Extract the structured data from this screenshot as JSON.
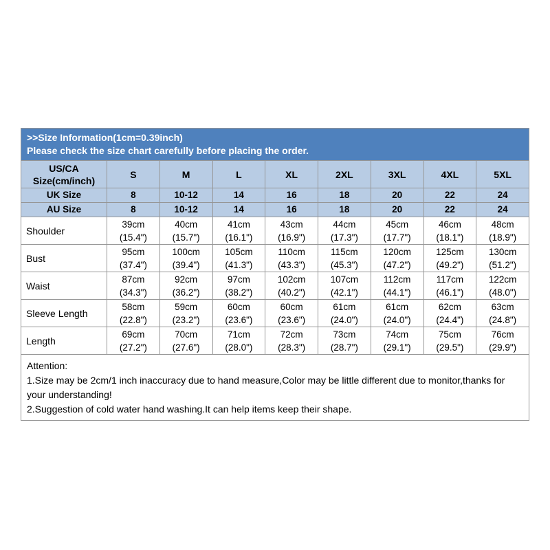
{
  "banner": {
    "line1": ">>Size Information(1cm=0.39inch)",
    "line2": "Please check the size chart carefully before placing the order."
  },
  "table": {
    "header_label_line1": "US/CA",
    "header_label_line2": "Size(cm/inch)",
    "sizes": [
      "S",
      "M",
      "L",
      "XL",
      "2XL",
      "3XL",
      "4XL",
      "5XL"
    ],
    "uk_label": "UK Size",
    "uk_values": [
      "8",
      "10-12",
      "14",
      "16",
      "18",
      "20",
      "22",
      "24"
    ],
    "au_label": "AU Size",
    "au_values": [
      "8",
      "10-12",
      "14",
      "16",
      "18",
      "20",
      "22",
      "24"
    ],
    "measurements": [
      {
        "label": "Shoulder",
        "cm": [
          "39cm",
          "40cm",
          "41cm",
          "43cm",
          "44cm",
          "45cm",
          "46cm",
          "48cm"
        ],
        "inch": [
          "(15.4\")",
          "(15.7\")",
          "(16.1\")",
          "(16.9\")",
          "(17.3\")",
          "(17.7\")",
          "(18.1\")",
          "(18.9\")"
        ]
      },
      {
        "label": "Bust",
        "cm": [
          "95cm",
          "100cm",
          "105cm",
          "110cm",
          "115cm",
          "120cm",
          "125cm",
          "130cm"
        ],
        "inch": [
          "(37.4\")",
          "(39.4\")",
          "(41.3\")",
          "(43.3\")",
          "(45.3\")",
          "(47.2\")",
          "(49.2\")",
          "(51.2\")"
        ]
      },
      {
        "label": "Waist",
        "cm": [
          "87cm",
          "92cm",
          "97cm",
          "102cm",
          "107cm",
          "112cm",
          "117cm",
          "122cm"
        ],
        "inch": [
          "(34.3\")",
          "(36.2\")",
          "(38.2\")",
          "(40.2\")",
          "(42.1\")",
          "(44.1\")",
          "(46.1\")",
          "(48.0\")"
        ]
      },
      {
        "label": "Sleeve Length",
        "cm": [
          "58cm",
          "59cm",
          "60cm",
          "60cm",
          "61cm",
          "61cm",
          "62cm",
          "63cm"
        ],
        "inch": [
          "(22.8\")",
          "(23.2\")",
          "(23.6\")",
          "(23.6\")",
          "(24.0\")",
          "(24.0\")",
          "(24.4\")",
          "(24.8\")"
        ]
      },
      {
        "label": "Length",
        "cm": [
          "69cm",
          "70cm",
          "71cm",
          "72cm",
          "73cm",
          "74cm",
          "75cm",
          "76cm"
        ],
        "inch": [
          "(27.2\")",
          "(27.6\")",
          "(28.0\")",
          "(28.3\")",
          "(28.7\")",
          "(29.1\")",
          "(29.5\")",
          "(29.9\")"
        ]
      }
    ]
  },
  "attention": {
    "title": "Attention:",
    "line1": "1.Size may be 2cm/1 inch inaccuracy due to hand measure,Color may be little different due to monitor,thanks for your understanding!",
    "line2": "2.Suggestion of cold water hand washing.It can help items keep their shape."
  },
  "colors": {
    "banner_bg": "#4f81bd",
    "banner_text": "#ffffff",
    "header_bg": "#b8cce4",
    "border": "#969696",
    "body_text": "#000000"
  },
  "chart_data": {
    "type": "table",
    "title": ">>Size Information(1cm=0.39inch)",
    "subtitle": "Please check the size chart carefully before placing the order.",
    "columns": [
      "US/CA Size(cm/inch)",
      "S",
      "M",
      "L",
      "XL",
      "2XL",
      "3XL",
      "4XL",
      "5XL"
    ],
    "rows": [
      [
        "UK Size",
        "8",
        "10-12",
        "14",
        "16",
        "18",
        "20",
        "22",
        "24"
      ],
      [
        "AU Size",
        "8",
        "10-12",
        "14",
        "16",
        "18",
        "20",
        "22",
        "24"
      ],
      [
        "Shoulder",
        "39cm (15.4\")",
        "40cm (15.7\")",
        "41cm (16.1\")",
        "43cm (16.9\")",
        "44cm (17.3\")",
        "45cm (17.7\")",
        "46cm (18.1\")",
        "48cm (18.9\")"
      ],
      [
        "Bust",
        "95cm (37.4\")",
        "100cm (39.4\")",
        "105cm (41.3\")",
        "110cm (43.3\")",
        "115cm (45.3\")",
        "120cm (47.2\")",
        "125cm (49.2\")",
        "130cm (51.2\")"
      ],
      [
        "Waist",
        "87cm (34.3\")",
        "92cm (36.2\")",
        "97cm (38.2\")",
        "102cm (40.2\")",
        "107cm (42.1\")",
        "112cm (44.1\")",
        "117cm (46.1\")",
        "122cm (48.0\")"
      ],
      [
        "Sleeve Length",
        "58cm (22.8\")",
        "59cm (23.2\")",
        "60cm (23.6\")",
        "60cm (23.6\")",
        "61cm (24.0\")",
        "61cm (24.0\")",
        "62cm (24.4\")",
        "63cm (24.8\")"
      ],
      [
        "Length",
        "69cm (27.2\")",
        "70cm (27.6\")",
        "71cm (28.0\")",
        "72cm (28.3\")",
        "73cm (28.7\")",
        "74cm (29.1\")",
        "75cm (29.5\")",
        "76cm (29.9\")"
      ]
    ],
    "notes": [
      "Attention:",
      "1.Size may be 2cm/1 inch inaccuracy due to hand measure,Color may be little different due to monitor,thanks for your understanding!",
      "2.Suggestion of cold water hand washing.It can help items keep their shape."
    ]
  }
}
